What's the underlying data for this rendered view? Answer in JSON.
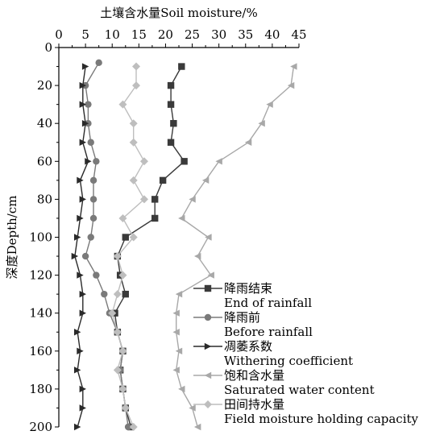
{
  "chart_data": {
    "type": "line",
    "xlabel": "土壤含水量Soil moisture/%",
    "ylabel": "深度Depth/cm",
    "xlim": [
      0,
      45
    ],
    "ylim": [
      0,
      200
    ],
    "y_inverted": true,
    "x_axis_position": "top",
    "xticks": [
      "0",
      "5",
      "10",
      "15",
      "20",
      "25",
      "30",
      "35",
      "40",
      "45"
    ],
    "yticks": [
      "0",
      "20",
      "40",
      "60",
      "80",
      "100",
      "120",
      "140",
      "160",
      "180",
      "200"
    ],
    "legend_position": "bottom-right",
    "series": [
      {
        "name": "降雨结束",
        "name_en": "End of rainfall",
        "marker": "square",
        "color": "#3a3a3a",
        "points": [
          [
            23,
            10
          ],
          [
            21,
            20
          ],
          [
            21,
            30
          ],
          [
            21.5,
            40
          ],
          [
            21,
            50
          ],
          [
            23.5,
            60
          ],
          [
            19.5,
            70
          ],
          [
            18,
            80
          ],
          [
            18,
            90
          ],
          [
            12.5,
            100
          ],
          [
            11,
            110
          ],
          [
            11.5,
            120
          ],
          [
            12.5,
            130
          ],
          [
            10.5,
            140
          ],
          [
            11,
            150
          ],
          [
            12,
            160
          ],
          [
            11.5,
            170
          ],
          [
            12,
            180
          ],
          [
            12.5,
            190
          ],
          [
            13.5,
            200
          ]
        ]
      },
      {
        "name": "降雨前",
        "name_en": "Before rainfall",
        "marker": "circle",
        "color": "#7a7a7a",
        "points": [
          [
            7.5,
            8
          ],
          [
            5,
            20
          ],
          [
            5.5,
            30
          ],
          [
            5.5,
            40
          ],
          [
            6,
            50
          ],
          [
            7,
            60
          ],
          [
            6.5,
            70
          ],
          [
            6.5,
            80
          ],
          [
            6.5,
            90
          ],
          [
            6,
            100
          ],
          [
            5,
            110
          ],
          [
            7,
            120
          ],
          [
            8.5,
            130
          ],
          [
            9.5,
            140
          ],
          [
            11,
            150
          ],
          [
            12,
            160
          ],
          [
            11.5,
            170
          ],
          [
            12,
            180
          ],
          [
            12.5,
            190
          ],
          [
            13,
            200
          ]
        ]
      },
      {
        "name": "凋萎系数",
        "name_en": "Withering coefficient",
        "marker": "triangle-right",
        "color": "#2a2a2a",
        "points": [
          [
            5,
            10
          ],
          [
            4.5,
            20
          ],
          [
            4.5,
            30
          ],
          [
            5,
            40
          ],
          [
            4.5,
            50
          ],
          [
            5.5,
            60
          ],
          [
            4,
            70
          ],
          [
            4.5,
            80
          ],
          [
            4,
            90
          ],
          [
            3.5,
            100
          ],
          [
            3,
            110
          ],
          [
            4,
            120
          ],
          [
            4.5,
            130
          ],
          [
            4.5,
            140
          ],
          [
            3.5,
            150
          ],
          [
            4,
            160
          ],
          [
            3.5,
            170
          ],
          [
            4.5,
            180
          ],
          [
            4.5,
            190
          ],
          [
            3.5,
            200
          ]
        ]
      },
      {
        "name": "饱和含水量",
        "name_en": "Saturated water content",
        "marker": "triangle-left",
        "color": "#a8a8a8",
        "points": [
          [
            44,
            10
          ],
          [
            43.5,
            20
          ],
          [
            39.5,
            30
          ],
          [
            38,
            40
          ],
          [
            35.5,
            50
          ],
          [
            30,
            60
          ],
          [
            27.5,
            70
          ],
          [
            25,
            80
          ],
          [
            23,
            90
          ],
          [
            28,
            100
          ],
          [
            26,
            110
          ],
          [
            28.5,
            120
          ],
          [
            22.5,
            130
          ],
          [
            22,
            140
          ],
          [
            22,
            150
          ],
          [
            22.5,
            160
          ],
          [
            22,
            170
          ],
          [
            23,
            180
          ],
          [
            25,
            190
          ],
          [
            26,
            200
          ]
        ]
      },
      {
        "name": "田间持水量",
        "name_en": "Field moisture holding capacity",
        "marker": "diamond",
        "color": "#bebebe",
        "points": [
          [
            14.5,
            10
          ],
          [
            14.5,
            20
          ],
          [
            12,
            30
          ],
          [
            14,
            40
          ],
          [
            14,
            50
          ],
          [
            16,
            60
          ],
          [
            14,
            70
          ],
          [
            16,
            80
          ],
          [
            12,
            90
          ],
          [
            14,
            100
          ],
          [
            11,
            110
          ],
          [
            12,
            120
          ],
          [
            11,
            130
          ],
          [
            10,
            140
          ],
          [
            11,
            150
          ],
          [
            12,
            160
          ],
          [
            11,
            170
          ],
          [
            12,
            180
          ],
          [
            12.5,
            190
          ],
          [
            14,
            200
          ]
        ]
      }
    ]
  }
}
